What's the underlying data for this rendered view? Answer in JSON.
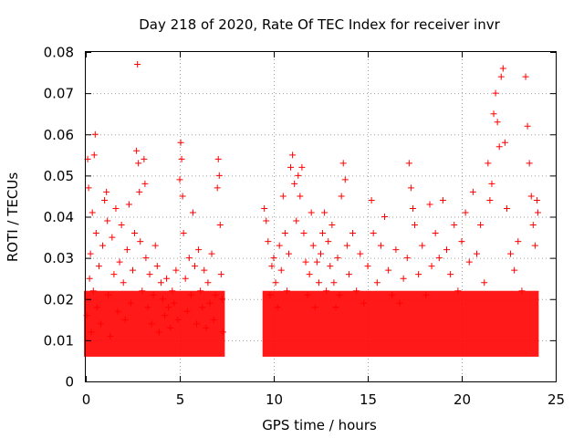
{
  "chart_data": {
    "type": "scatter",
    "title": "Day 218 of 2020, Rate Of TEC Index for receiver invr",
    "xlabel": "GPS time / hours",
    "ylabel": "ROTI / TECUs",
    "xlim": [
      0,
      25
    ],
    "ylim": [
      0,
      0.08
    ],
    "xticks": [
      0,
      5,
      10,
      15,
      20,
      25
    ],
    "yticks": [
      0,
      0.01,
      0.02,
      0.03,
      0.04,
      0.05,
      0.06,
      0.07,
      0.08
    ],
    "xtick_labels": [
      "0",
      "5",
      "10",
      "15",
      "20",
      "25"
    ],
    "ytick_labels": [
      "0",
      "0.01",
      "0.02",
      "0.03",
      "0.04",
      "0.05",
      "0.06",
      "0.07",
      "0.08"
    ],
    "grid": true,
    "marker": "+",
    "color": "#ff0000",
    "series": [
      {
        "name": "ROTI",
        "points": [
          [
            0.05,
            0.016
          ],
          [
            0.1,
            0.054
          ],
          [
            0.15,
            0.047
          ],
          [
            0.2,
            0.025
          ],
          [
            0.25,
            0.031
          ],
          [
            0.3,
            0.012
          ],
          [
            0.35,
            0.041
          ],
          [
            0.4,
            0.022
          ],
          [
            0.45,
            0.055
          ],
          [
            0.5,
            0.06
          ],
          [
            0.55,
            0.036
          ],
          [
            0.6,
            0.018
          ],
          [
            0.7,
            0.028
          ],
          [
            0.8,
            0.014
          ],
          [
            0.9,
            0.033
          ],
          [
            1.0,
            0.044
          ],
          [
            1.1,
            0.046
          ],
          [
            1.15,
            0.039
          ],
          [
            1.2,
            0.021
          ],
          [
            1.3,
            0.011
          ],
          [
            1.4,
            0.035
          ],
          [
            1.5,
            0.026
          ],
          [
            1.6,
            0.042
          ],
          [
            1.7,
            0.017
          ],
          [
            1.8,
            0.029
          ],
          [
            1.9,
            0.038
          ],
          [
            2.0,
            0.024
          ],
          [
            2.1,
            0.015
          ],
          [
            2.2,
            0.032
          ],
          [
            2.3,
            0.043
          ],
          [
            2.4,
            0.019
          ],
          [
            2.5,
            0.027
          ],
          [
            2.6,
            0.036
          ],
          [
            2.7,
            0.056
          ],
          [
            2.75,
            0.077
          ],
          [
            2.8,
            0.053
          ],
          [
            2.85,
            0.046
          ],
          [
            2.9,
            0.034
          ],
          [
            3.0,
            0.022
          ],
          [
            3.1,
            0.054
          ],
          [
            3.15,
            0.048
          ],
          [
            3.2,
            0.03
          ],
          [
            3.3,
            0.018
          ],
          [
            3.4,
            0.026
          ],
          [
            3.5,
            0.014
          ],
          [
            3.6,
            0.021
          ],
          [
            3.7,
            0.033
          ],
          [
            3.8,
            0.028
          ],
          [
            3.9,
            0.012
          ],
          [
            4.0,
            0.024
          ],
          [
            4.1,
            0.02
          ],
          [
            4.2,
            0.016
          ],
          [
            4.3,
            0.025
          ],
          [
            4.4,
            0.018
          ],
          [
            4.5,
            0.013
          ],
          [
            4.6,
            0.022
          ],
          [
            4.7,
            0.019
          ],
          [
            4.8,
            0.027
          ],
          [
            4.9,
            0.015
          ],
          [
            5.0,
            0.049
          ],
          [
            5.05,
            0.058
          ],
          [
            5.1,
            0.054
          ],
          [
            5.15,
            0.045
          ],
          [
            5.2,
            0.036
          ],
          [
            5.3,
            0.025
          ],
          [
            5.4,
            0.017
          ],
          [
            5.5,
            0.03
          ],
          [
            5.6,
            0.021
          ],
          [
            5.7,
            0.041
          ],
          [
            5.8,
            0.028
          ],
          [
            5.9,
            0.014
          ],
          [
            6.0,
            0.032
          ],
          [
            6.1,
            0.022
          ],
          [
            6.2,
            0.018
          ],
          [
            6.3,
            0.027
          ],
          [
            6.4,
            0.013
          ],
          [
            6.5,
            0.024
          ],
          [
            6.6,
            0.019
          ],
          [
            6.7,
            0.031
          ],
          [
            6.8,
            0.015
          ],
          [
            6.9,
            0.021
          ],
          [
            7.0,
            0.047
          ],
          [
            7.05,
            0.054
          ],
          [
            7.1,
            0.05
          ],
          [
            7.15,
            0.038
          ],
          [
            7.2,
            0.026
          ],
          [
            7.25,
            0.02
          ],
          [
            7.3,
            0.012
          ],
          [
            9.5,
            0.042
          ],
          [
            9.6,
            0.039
          ],
          [
            9.7,
            0.034
          ],
          [
            9.8,
            0.021
          ],
          [
            9.9,
            0.028
          ],
          [
            10.0,
            0.03
          ],
          [
            10.1,
            0.024
          ],
          [
            10.2,
            0.018
          ],
          [
            10.3,
            0.033
          ],
          [
            10.4,
            0.027
          ],
          [
            10.5,
            0.045
          ],
          [
            10.6,
            0.036
          ],
          [
            10.7,
            0.022
          ],
          [
            10.8,
            0.031
          ],
          [
            10.9,
            0.052
          ],
          [
            11.0,
            0.055
          ],
          [
            11.1,
            0.048
          ],
          [
            11.2,
            0.039
          ],
          [
            11.3,
            0.05
          ],
          [
            11.4,
            0.045
          ],
          [
            11.5,
            0.052
          ],
          [
            11.6,
            0.036
          ],
          [
            11.7,
            0.029
          ],
          [
            11.8,
            0.021
          ],
          [
            11.9,
            0.026
          ],
          [
            12.0,
            0.041
          ],
          [
            12.1,
            0.033
          ],
          [
            12.2,
            0.018
          ],
          [
            12.3,
            0.029
          ],
          [
            12.4,
            0.024
          ],
          [
            12.5,
            0.031
          ],
          [
            12.6,
            0.036
          ],
          [
            12.7,
            0.041
          ],
          [
            12.8,
            0.022
          ],
          [
            12.9,
            0.034
          ],
          [
            13.0,
            0.028
          ],
          [
            13.1,
            0.038
          ],
          [
            13.2,
            0.024
          ],
          [
            13.3,
            0.018
          ],
          [
            13.4,
            0.03
          ],
          [
            13.5,
            0.021
          ],
          [
            13.6,
            0.045
          ],
          [
            13.7,
            0.053
          ],
          [
            13.8,
            0.049
          ],
          [
            13.9,
            0.033
          ],
          [
            14.0,
            0.026
          ],
          [
            14.2,
            0.036
          ],
          [
            14.4,
            0.022
          ],
          [
            14.6,
            0.031
          ],
          [
            14.8,
            0.019
          ],
          [
            15.0,
            0.028
          ],
          [
            15.2,
            0.044
          ],
          [
            15.3,
            0.036
          ],
          [
            15.5,
            0.024
          ],
          [
            15.7,
            0.033
          ],
          [
            15.9,
            0.04
          ],
          [
            16.1,
            0.027
          ],
          [
            16.3,
            0.021
          ],
          [
            16.5,
            0.032
          ],
          [
            16.7,
            0.019
          ],
          [
            16.9,
            0.025
          ],
          [
            17.1,
            0.03
          ],
          [
            17.2,
            0.053
          ],
          [
            17.3,
            0.047
          ],
          [
            17.4,
            0.042
          ],
          [
            17.5,
            0.038
          ],
          [
            17.7,
            0.026
          ],
          [
            17.9,
            0.033
          ],
          [
            18.1,
            0.021
          ],
          [
            18.3,
            0.043
          ],
          [
            18.4,
            0.028
          ],
          [
            18.6,
            0.036
          ],
          [
            18.8,
            0.03
          ],
          [
            19.0,
            0.044
          ],
          [
            19.2,
            0.032
          ],
          [
            19.4,
            0.026
          ],
          [
            19.6,
            0.038
          ],
          [
            19.8,
            0.022
          ],
          [
            20.0,
            0.034
          ],
          [
            20.2,
            0.041
          ],
          [
            20.4,
            0.029
          ],
          [
            20.6,
            0.046
          ],
          [
            20.8,
            0.031
          ],
          [
            21.0,
            0.038
          ],
          [
            21.2,
            0.024
          ],
          [
            21.4,
            0.053
          ],
          [
            21.5,
            0.044
          ],
          [
            21.6,
            0.048
          ],
          [
            21.7,
            0.065
          ],
          [
            21.8,
            0.07
          ],
          [
            21.9,
            0.063
          ],
          [
            22.0,
            0.057
          ],
          [
            22.1,
            0.074
          ],
          [
            22.2,
            0.076
          ],
          [
            22.3,
            0.058
          ],
          [
            22.4,
            0.042
          ],
          [
            22.6,
            0.031
          ],
          [
            22.8,
            0.027
          ],
          [
            23.0,
            0.034
          ],
          [
            23.2,
            0.022
          ],
          [
            23.4,
            0.074
          ],
          [
            23.5,
            0.062
          ],
          [
            23.6,
            0.053
          ],
          [
            23.7,
            0.045
          ],
          [
            23.8,
            0.038
          ],
          [
            23.9,
            0.033
          ],
          [
            24.0,
            0.044
          ],
          [
            24.05,
            0.041
          ]
        ]
      }
    ]
  }
}
